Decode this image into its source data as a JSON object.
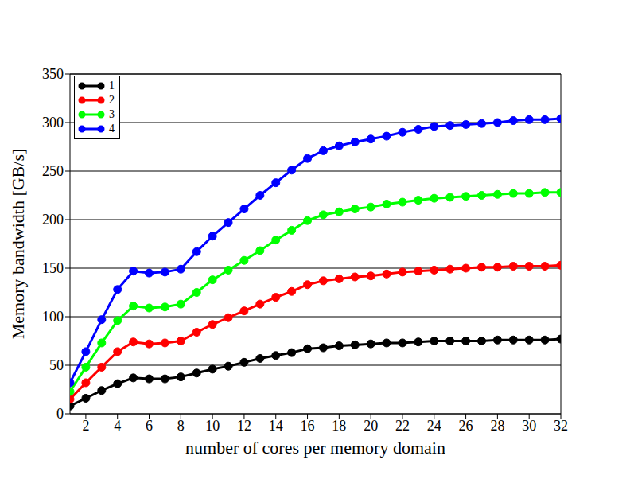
{
  "chart_data": {
    "type": "line",
    "x_label": "number of cores per memory domain",
    "y_label": "Memory bandwidth [GB/s]",
    "x": [
      1,
      2,
      3,
      4,
      5,
      6,
      7,
      8,
      9,
      10,
      11,
      12,
      13,
      14,
      15,
      16,
      17,
      18,
      19,
      20,
      21,
      22,
      23,
      24,
      25,
      26,
      27,
      28,
      29,
      30,
      31,
      32
    ],
    "xlim": [
      1,
      32
    ],
    "xticks": [
      2,
      4,
      6,
      8,
      10,
      12,
      14,
      16,
      18,
      20,
      22,
      24,
      26,
      28,
      30,
      32
    ],
    "ylim": [
      0,
      350
    ],
    "yticks": [
      0,
      50,
      100,
      150,
      200,
      250,
      300,
      350
    ],
    "grid": true,
    "legend": "top left",
    "marker": "circle",
    "series": [
      {
        "name": "1",
        "color": "#000000",
        "values": [
          8,
          16,
          24,
          31,
          37,
          36,
          36,
          38,
          42,
          46,
          49,
          53,
          57,
          60,
          63,
          67,
          68,
          70,
          71,
          72,
          73,
          73,
          74,
          75,
          75,
          75,
          75,
          76,
          76,
          76,
          76,
          77
        ]
      },
      {
        "name": "2",
        "color": "#ff0000",
        "values": [
          15,
          32,
          48,
          64,
          74,
          72,
          73,
          75,
          84,
          92,
          99,
          106,
          113,
          120,
          126,
          133,
          137,
          139,
          141,
          142,
          144,
          146,
          147,
          148,
          149,
          150,
          151,
          151,
          152,
          152,
          152,
          153
        ]
      },
      {
        "name": "3",
        "color": "#00ff00",
        "values": [
          23,
          48,
          73,
          96,
          111,
          109,
          110,
          113,
          125,
          138,
          148,
          158,
          168,
          179,
          189,
          199,
          205,
          208,
          211,
          213,
          216,
          218,
          220,
          222,
          223,
          224,
          225,
          226,
          227,
          227,
          228,
          228
        ]
      },
      {
        "name": "4",
        "color": "#0000ff",
        "values": [
          32,
          64,
          97,
          128,
          147,
          145,
          146,
          149,
          167,
          183,
          197,
          211,
          225,
          238,
          251,
          263,
          271,
          276,
          280,
          283,
          286,
          290,
          293,
          296,
          297,
          298,
          299,
          300,
          302,
          303,
          303,
          304
        ]
      }
    ]
  }
}
